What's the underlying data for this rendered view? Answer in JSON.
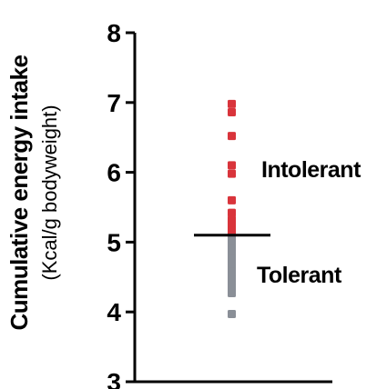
{
  "chart_data": {
    "type": "scatter",
    "title": "",
    "ylabel": "Cumulative energy intake",
    "ylabel_unit": "(Kcal/g bodyweight)",
    "ylim": [
      3,
      8
    ],
    "yticks": [
      "3",
      "4",
      "5",
      "6",
      "7",
      "8"
    ],
    "threshold": 5.1,
    "grid": false,
    "annotations": {
      "intolerant": "Intolerant",
      "tolerant": "Tolerant"
    },
    "colors": {
      "intolerant": "#d9343b",
      "tolerant": "#8a8f97",
      "axis": "#000000"
    },
    "series": [
      {
        "name": "Intolerant",
        "values": [
          6.98,
          6.86,
          6.52,
          6.1,
          5.98,
          5.6,
          5.42,
          5.32,
          5.24,
          5.16
        ]
      },
      {
        "name": "Tolerant",
        "values": [
          5.06,
          4.98,
          4.9,
          4.83,
          4.77,
          4.7,
          4.64,
          4.58,
          4.52,
          4.46,
          4.39,
          4.33,
          4.27,
          3.97
        ]
      }
    ]
  }
}
